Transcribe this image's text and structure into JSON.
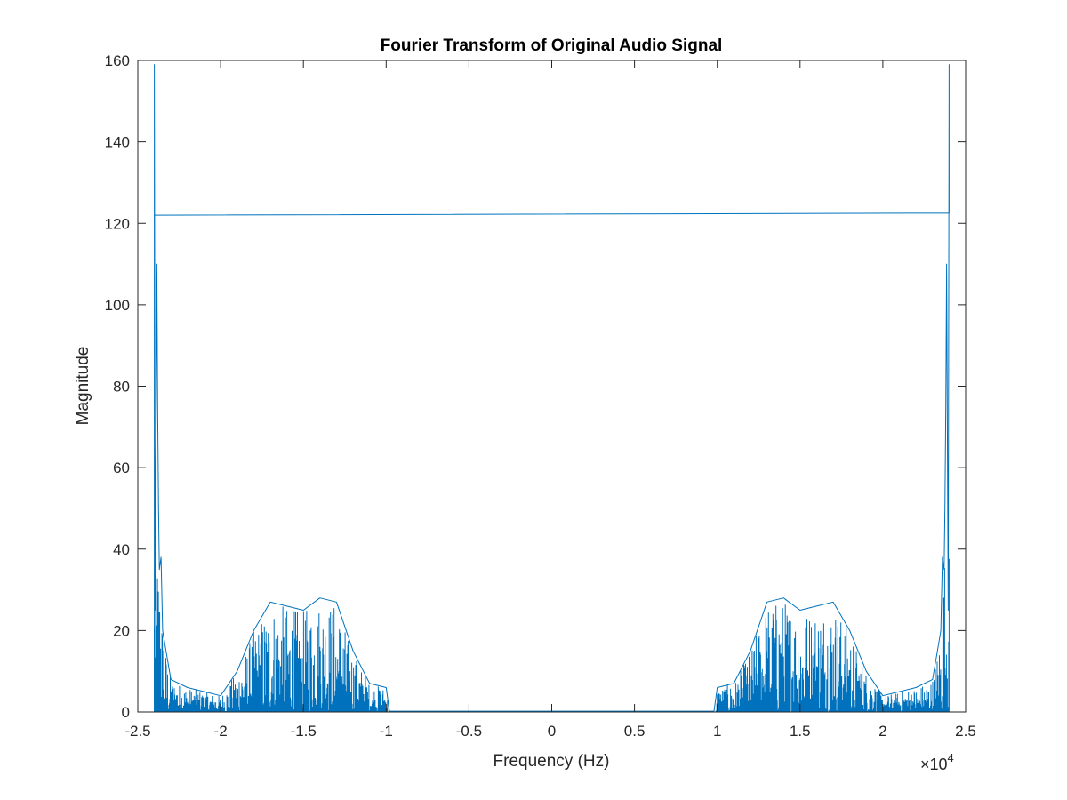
{
  "chart_data": {
    "type": "line",
    "title": "Fourier Transform of Original Audio Signal",
    "xlabel": "Frequency (Hz)",
    "ylabel": "Magnitude",
    "x_exponent_label": "×10",
    "x_exponent_power": "4",
    "xlim": [
      -2.5,
      2.5
    ],
    "ylim": [
      0,
      160
    ],
    "x_ticks": [
      -2.5,
      -2,
      -1.5,
      -1,
      -0.5,
      0,
      0.5,
      1,
      1.5,
      2,
      2.5
    ],
    "x_tick_labels": [
      "-2.5",
      "-2",
      "-1.5",
      "-1",
      "-0.5",
      "0",
      "0.5",
      "1",
      "1.5",
      "2",
      "2.5"
    ],
    "y_ticks": [
      0,
      20,
      40,
      60,
      80,
      100,
      120,
      140,
      160
    ],
    "y_tick_labels": [
      "0",
      "20",
      "40",
      "60",
      "80",
      "100",
      "120",
      "140",
      "160"
    ],
    "grid": false,
    "line_color": "#0072bd",
    "data_range": [
      -2.4,
      2.4
    ],
    "series": [
      {
        "x": [
          -2.4,
          -2.4,
          -2.395,
          -2.385,
          -2.38,
          -2.375,
          -2.37,
          -2.36,
          -2.35,
          -2.33,
          -2.3,
          -2.2,
          -2.1,
          -2.0,
          -1.9,
          -1.8,
          -1.7,
          -1.6,
          -1.5,
          -1.4,
          -1.3,
          -1.2,
          -1.1,
          -1.0,
          -0.98,
          -0.5,
          0,
          0.5,
          0.98,
          1.0,
          1.1,
          1.2,
          1.3,
          1.4,
          1.5,
          1.6,
          1.7,
          1.8,
          1.9,
          2.0,
          2.1,
          2.2,
          2.3,
          2.33,
          2.35,
          2.36,
          2.37,
          2.375,
          2.38,
          2.385,
          2.395,
          2.4,
          2.4,
          -2.4
        ],
        "y": [
          0,
          159,
          25,
          110,
          75,
          50,
          35,
          38,
          20,
          15,
          8,
          6,
          5,
          4,
          10,
          20,
          27,
          26,
          25,
          28,
          27,
          15,
          7,
          6,
          0.2,
          0.2,
          0.2,
          0.2,
          0.2,
          6,
          7,
          15,
          27,
          28,
          25,
          26,
          27,
          20,
          10,
          4,
          5,
          6,
          8,
          15,
          20,
          38,
          35,
          50,
          75,
          110,
          25,
          159,
          122.5,
          122
        ]
      }
    ]
  }
}
